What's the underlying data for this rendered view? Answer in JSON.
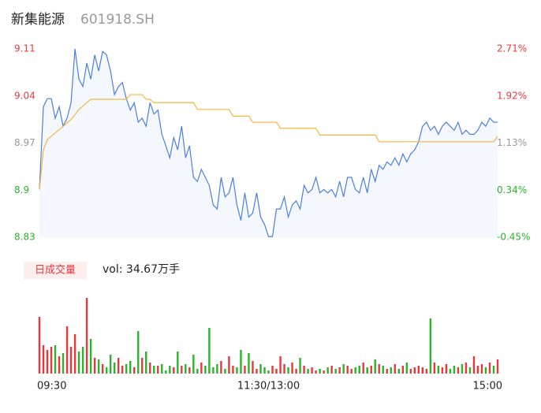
{
  "chart_data": {
    "type": "line",
    "title": "新集能源",
    "subtitle": "601918.SH",
    "categories": [
      "09:30",
      null,
      null,
      null,
      null,
      null,
      null,
      null,
      null,
      null,
      null,
      null,
      null,
      null,
      null,
      null,
      null,
      null,
      null,
      null,
      null,
      null,
      null,
      null,
      null,
      null,
      null,
      null,
      null,
      null,
      null,
      null,
      null,
      null,
      null,
      null,
      null,
      null,
      null,
      null,
      null,
      null,
      null,
      null,
      null,
      null,
      null,
      null,
      null,
      null,
      null,
      null,
      null,
      null,
      null,
      null,
      null,
      null,
      "11:30/13:00",
      null,
      null,
      null,
      null,
      null,
      null,
      null,
      null,
      null,
      null,
      null,
      null,
      null,
      null,
      null,
      null,
      null,
      null,
      null,
      null,
      null,
      null,
      null,
      null,
      null,
      null,
      null,
      null,
      null,
      null,
      null,
      null,
      null,
      null,
      null,
      null,
      null,
      null,
      null,
      null,
      null,
      null,
      null,
      null,
      null,
      null,
      null,
      null,
      null,
      null,
      null,
      null,
      null,
      null,
      null,
      null,
      null,
      "15:00"
    ],
    "series": [
      {
        "color": "#4a7fe0",
        "fill": "#f4f7fd",
        "values": [
          8.901,
          9.024,
          9.036,
          9.036,
          9.007,
          9.024,
          8.995,
          9.007,
          9.03,
          9.11,
          9.065,
          9.054,
          9.089,
          9.065,
          9.101,
          9.077,
          9.106,
          9.101,
          9.077,
          9.042,
          9.054,
          9.06,
          9.036,
          9.019,
          9.03,
          9.001,
          9.007,
          8.995,
          9.03,
          9.013,
          9.019,
          8.983,
          8.966,
          8.948,
          8.978,
          8.96,
          8.995,
          8.948,
          8.966,
          8.919,
          8.913,
          8.931,
          8.919,
          8.907,
          8.878,
          8.872,
          8.919,
          8.89,
          8.896,
          8.919,
          8.878,
          8.855,
          8.896,
          8.86,
          8.866,
          8.896,
          8.86,
          8.849,
          8.831,
          8.831,
          8.872,
          8.872,
          8.89,
          8.86,
          8.878,
          8.884,
          8.872,
          8.907,
          8.896,
          8.901,
          8.919,
          8.896,
          8.901,
          8.896,
          8.901,
          8.89,
          8.913,
          8.89,
          8.919,
          8.919,
          8.901,
          8.896,
          8.919,
          8.896,
          8.931,
          8.913,
          8.937,
          8.931,
          8.942,
          8.937,
          8.948,
          8.937,
          8.954,
          8.942,
          8.954,
          8.96,
          8.972,
          8.995,
          9.001,
          8.989,
          8.995,
          8.983,
          8.995,
          9.001,
          8.995,
          8.989,
          9.001,
          8.983,
          8.989,
          8.983,
          8.983,
          8.989,
          9.001,
          8.995,
          9.007,
          9.001,
          9.001
        ]
      },
      {
        "color": "#f5b53a",
        "values": [
          8.901,
          8.96,
          8.975,
          8.98,
          8.985,
          8.99,
          8.995,
          9.0,
          9.005,
          9.012,
          9.02,
          9.025,
          9.03,
          9.035,
          9.035,
          9.035,
          9.035,
          9.035,
          9.035,
          9.035,
          9.035,
          9.035,
          9.035,
          9.042,
          9.042,
          9.042,
          9.042,
          9.035,
          9.035,
          9.03,
          9.03,
          9.03,
          9.03,
          9.03,
          9.03,
          9.03,
          9.03,
          9.03,
          9.03,
          9.03,
          9.02,
          9.02,
          9.02,
          9.02,
          9.02,
          9.02,
          9.02,
          9.02,
          9.02,
          9.01,
          9.01,
          9.01,
          9.01,
          9.01,
          9.001,
          9.001,
          9.001,
          9.001,
          9.001,
          9.001,
          9.001,
          8.992,
          8.992,
          8.992,
          8.992,
          8.992,
          8.992,
          8.992,
          8.992,
          8.992,
          8.992,
          8.982,
          8.982,
          8.982,
          8.982,
          8.982,
          8.982,
          8.982,
          8.982,
          8.982,
          8.982,
          8.982,
          8.982,
          8.982,
          8.982,
          8.982,
          8.972,
          8.972,
          8.972,
          8.972,
          8.972,
          8.972,
          8.972,
          8.972,
          8.972,
          8.972,
          8.972,
          8.972,
          8.972,
          8.972,
          8.972,
          8.972,
          8.972,
          8.972,
          8.972,
          8.972,
          8.972,
          8.972,
          8.972,
          8.972,
          8.972,
          8.972,
          8.972,
          8.972,
          8.972,
          8.972,
          8.98
        ]
      }
    ],
    "ylim": [
      8.83,
      9.11
    ],
    "yticks": [
      9.11,
      9.04,
      8.97,
      8.9,
      8.83
    ],
    "ytick_colors": [
      "#e8383d",
      "#e8383d",
      "#999999",
      "#2bb32b",
      "#2bb32b"
    ],
    "y2lim": [
      -0.45,
      2.71
    ],
    "y2ticks": [
      {
        "value": 2.71,
        "label": "2.71%"
      },
      {
        "value": 1.92,
        "label": "1.92%"
      },
      {
        "value": 1.13,
        "label": "1.13%"
      },
      {
        "value": 0.34,
        "label": "0.34%"
      },
      {
        "value": -0.45,
        "label": "-0.45%"
      }
    ],
    "volume": {
      "label": "日成交量",
      "text": "vol: 34.67万手",
      "ylim": [
        0,
        100
      ],
      "up_color": "#e8383d",
      "down_color": "#2bb32b",
      "values": [
        72,
        36,
        30,
        34,
        36,
        22,
        26,
        60,
        34,
        50,
        28,
        34,
        96,
        44,
        20,
        18,
        12,
        8,
        24,
        14,
        20,
        10,
        12,
        16,
        8,
        54,
        20,
        28,
        14,
        10,
        10,
        12,
        4,
        10,
        8,
        28,
        10,
        12,
        8,
        24,
        6,
        14,
        10,
        58,
        8,
        12,
        16,
        6,
        22,
        10,
        8,
        30,
        10,
        26,
        16,
        6,
        12,
        8,
        4,
        10,
        6,
        22,
        12,
        8,
        14,
        6,
        20,
        10,
        6,
        8,
        4,
        6,
        4,
        8,
        10,
        6,
        8,
        12,
        10,
        6,
        8,
        10,
        14,
        8,
        10,
        18,
        12,
        10,
        6,
        8,
        12,
        6,
        10,
        14,
        6,
        8,
        10,
        8,
        6,
        70,
        14,
        10,
        8,
        12,
        6,
        10,
        8,
        12,
        14,
        8,
        22,
        10,
        12,
        8,
        14,
        10,
        18
      ]
    }
  }
}
